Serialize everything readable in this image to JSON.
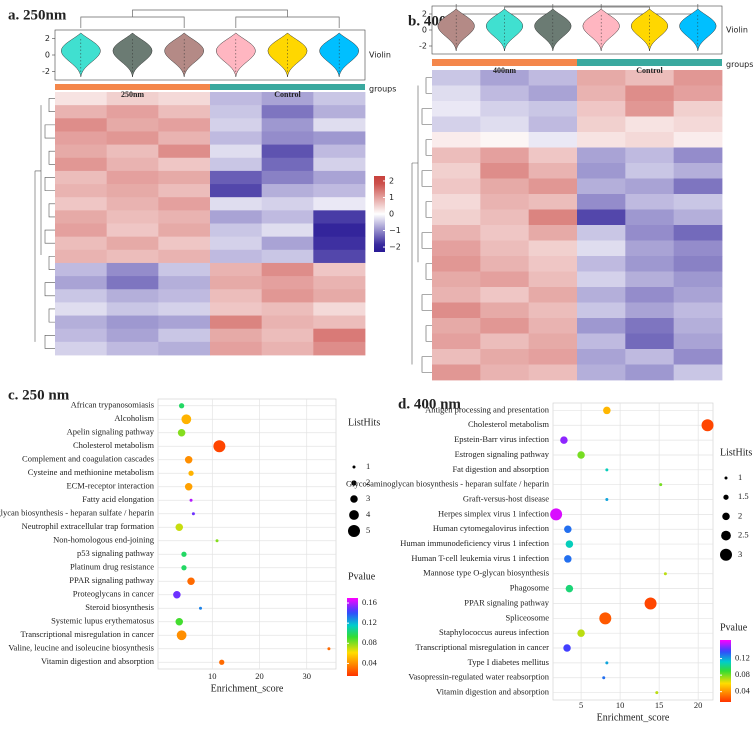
{
  "chart_data": [
    {
      "type": "heatmap",
      "title": "a. 250nm",
      "groups": [
        "250nm",
        "Control"
      ],
      "group_colors": [
        "#f4874b",
        "#3aa99f"
      ],
      "groups_label": "groups",
      "violin_label": "Violin",
      "violin_colors": [
        "#40e0d0",
        "#6b7b73",
        "#b48a86",
        "#ffb6c1",
        "#ffd700",
        "#00bfff"
      ],
      "violin_yticks": [
        -2,
        0,
        2
      ],
      "colorbar_ticks": [
        2,
        1,
        0,
        {
          "value": -1,
          "label": "−1"
        },
        {
          "value": -2,
          "label": "−2"
        }
      ],
      "zlim": [
        -2.3,
        2.3
      ],
      "values": [
        [
          0.3,
          0.5,
          0.4,
          -0.6,
          -0.8,
          -0.5
        ],
        [
          0.8,
          1.0,
          0.7,
          -0.5,
          -1.2,
          -0.7
        ],
        [
          1.2,
          0.9,
          1.0,
          -0.4,
          -0.9,
          -0.3
        ],
        [
          1.0,
          1.1,
          0.8,
          -0.6,
          -1.0,
          -0.9
        ],
        [
          0.9,
          0.7,
          1.2,
          -0.3,
          -1.5,
          -0.6
        ],
        [
          1.1,
          0.8,
          0.6,
          -0.5,
          -1.3,
          -0.4
        ],
        [
          0.7,
          1.0,
          0.9,
          -1.4,
          -1.1,
          -0.8
        ],
        [
          0.8,
          0.9,
          0.7,
          -1.6,
          -0.7,
          -0.6
        ],
        [
          0.6,
          0.8,
          1.0,
          -0.3,
          -0.4,
          -0.2
        ],
        [
          0.9,
          0.7,
          0.8,
          -0.8,
          -0.6,
          -1.7
        ],
        [
          1.0,
          0.6,
          0.9,
          -0.5,
          -0.3,
          -1.9
        ],
        [
          0.7,
          0.9,
          0.6,
          -0.4,
          -0.8,
          -1.8
        ],
        [
          0.8,
          0.7,
          0.8,
          -0.6,
          -0.5,
          -1.6
        ],
        [
          -0.6,
          -1.0,
          -0.5,
          0.8,
          1.2,
          0.6
        ],
        [
          -0.8,
          -1.2,
          -0.7,
          0.9,
          1.0,
          0.8
        ],
        [
          -0.5,
          -0.7,
          -0.6,
          0.7,
          1.1,
          0.9
        ],
        [
          -0.3,
          -0.5,
          -0.4,
          0.6,
          0.7,
          0.4
        ],
        [
          -0.7,
          -0.9,
          -0.8,
          1.3,
          0.8,
          0.7
        ],
        [
          -0.6,
          -0.8,
          -0.5,
          0.9,
          0.7,
          1.4
        ],
        [
          -0.4,
          -0.6,
          -0.7,
          1.0,
          0.8,
          1.2
        ]
      ]
    },
    {
      "type": "heatmap",
      "title": "b. 400nm",
      "groups": [
        "400nm",
        "Control"
      ],
      "group_colors": [
        "#f4874b",
        "#3aa99f"
      ],
      "groups_label": "groups",
      "violin_label": "Violin",
      "violin_colors": [
        "#b48a86",
        "#40e0d0",
        "#6b7b73",
        "#ffb6c1",
        "#ffd700",
        "#00bfff"
      ],
      "violin_yticks": [
        -2,
        0,
        2
      ],
      "values": [
        [
          -0.5,
          -0.8,
          -0.6,
          0.9,
          0.7,
          1.1
        ],
        [
          -0.3,
          -0.6,
          -0.8,
          0.8,
          1.2,
          1.0
        ],
        [
          -0.2,
          -0.4,
          -0.5,
          0.6,
          1.1,
          0.5
        ],
        [
          -0.4,
          -0.3,
          -0.6,
          0.5,
          0.3,
          0.4
        ],
        [
          0.2,
          0.1,
          -0.2,
          0.3,
          0.4,
          0.2
        ],
        [
          0.7,
          1.0,
          0.6,
          -0.8,
          -0.6,
          -1.0
        ],
        [
          0.5,
          1.2,
          0.8,
          -0.9,
          -0.5,
          -0.7
        ],
        [
          0.6,
          0.9,
          1.1,
          -0.7,
          -0.8,
          -1.2
        ],
        [
          0.4,
          0.8,
          0.7,
          -1.0,
          -0.6,
          -0.5
        ],
        [
          0.5,
          0.7,
          1.3,
          -1.6,
          -0.9,
          -0.7
        ],
        [
          0.8,
          0.6,
          0.9,
          -0.5,
          -1.0,
          -1.3
        ],
        [
          1.0,
          0.7,
          0.5,
          -0.3,
          -0.8,
          -1.0
        ],
        [
          1.1,
          0.8,
          0.6,
          -0.6,
          -0.9,
          -1.1
        ],
        [
          0.9,
          1.0,
          0.7,
          -0.4,
          -0.7,
          -0.9
        ],
        [
          0.8,
          0.6,
          0.9,
          -0.7,
          -1.0,
          -0.8
        ],
        [
          1.2,
          0.9,
          0.7,
          -0.5,
          -0.8,
          -0.6
        ],
        [
          0.9,
          1.1,
          0.8,
          -0.9,
          -1.2,
          -0.7
        ],
        [
          1.0,
          0.7,
          0.9,
          -0.6,
          -1.3,
          -0.8
        ],
        [
          0.7,
          0.9,
          1.0,
          -0.8,
          -0.6,
          -1.0
        ],
        [
          1.1,
          0.8,
          0.7,
          -0.7,
          -0.9,
          -0.5
        ]
      ]
    },
    {
      "type": "bubble",
      "title": "c. 250 nm",
      "xlabel": "Enrichment_score",
      "categories": [
        "African trypanosomiasis",
        "Alcoholism",
        "Apelin signaling pathway",
        "Cholesterol metabolism",
        "Complement and coagulation cascades",
        "Cysteine and methionine metabolism",
        "ECM-receptor interaction",
        "Fatty acid elongation",
        "Glycosaminoglycan biosynthesis - heparan sulfate / heparin",
        "Neutrophil extracellular trap formation",
        "Non-homologous end-joining",
        "p53 signaling pathway",
        "Platinum drug resistance",
        "PPAR signaling pathway",
        "Proteoglycans in cancer",
        "Steroid biosynthesis",
        "Systemic lupus erythematosus",
        "Transcriptional misregulation in cancer",
        "Valine, leucine and isoleucine biosynthesis",
        "Vitamin digestion and absorption"
      ],
      "values": [
        3.5,
        4.5,
        3.5,
        11.5,
        5,
        5.5,
        5,
        5.5,
        6,
        3,
        11,
        4,
        4,
        5.5,
        2.5,
        7.5,
        3,
        3.5,
        34.7,
        12
      ],
      "sizes": [
        2,
        4,
        3,
        5,
        3,
        2,
        3,
        1,
        1,
        3,
        1,
        2,
        2,
        3,
        3,
        1,
        3,
        4,
        1,
        2
      ],
      "pvalues": [
        0.1,
        0.05,
        0.08,
        0.02,
        0.04,
        0.05,
        0.045,
        0.16,
        0.15,
        0.07,
        0.08,
        0.1,
        0.1,
        0.03,
        0.15,
        0.13,
        0.09,
        0.04,
        0.03,
        0.03
      ],
      "xlim": [
        -1.5,
        36.2
      ],
      "xticks": [
        10,
        20,
        30
      ],
      "size_title": "ListHits",
      "size_ticks": [
        1,
        2,
        3,
        4,
        5
      ],
      "size_range": [
        1,
        5
      ],
      "color_title": "Pvalue",
      "color_ticks": [
        0.04,
        0.08,
        0.12,
        0.16
      ],
      "color_lim": [
        0.015,
        0.17
      ]
    },
    {
      "type": "bubble",
      "title": "d. 400 nm",
      "xlabel": "Enrichment_score",
      "categories": [
        "Antigen processing and presentation",
        "Cholesterol metabolism",
        "Epstein-Barr virus infection",
        "Estrogen signaling pathway",
        "Fat digestion and absorption",
        "Glycosaminoglycan biosynthesis - heparan sulfate / heparin",
        "Graft-versus-host disease",
        "Herpes simplex virus 1 infection",
        "Human cytomegalovirus infection",
        "Human immunodeficiency virus 1 infection",
        "Human T-cell leukemia virus 1 infection",
        "Mannose type O-glycan biosynthesis",
        "Phagosome",
        "PPAR signaling pathway",
        "Spliceosome",
        "Staphylococcus aureus infection",
        "Transcriptional misregulation in cancer",
        "Type I diabetes mellitus",
        "Vasopressin-regulated water reabsorption",
        "Vitamin digestion and absorption"
      ],
      "values": [
        8.3,
        21.2,
        2.8,
        5,
        8.3,
        15.2,
        8.3,
        1.8,
        3.3,
        3.5,
        3.3,
        15.8,
        3.5,
        13.9,
        8.1,
        5,
        3.2,
        8.3,
        7.9,
        14.7
      ],
      "sizes": [
        2,
        3,
        2,
        2,
        1,
        1,
        1,
        3,
        2,
        2,
        2,
        1,
        2,
        3,
        3,
        2,
        2,
        1,
        1,
        1
      ],
      "pvalues": [
        0.05,
        0.02,
        0.15,
        0.08,
        0.11,
        0.08,
        0.12,
        0.16,
        0.13,
        0.11,
        0.13,
        0.07,
        0.1,
        0.02,
        0.025,
        0.07,
        0.14,
        0.12,
        0.13,
        0.07
      ],
      "xlim": [
        1.4,
        21.9
      ],
      "xticks": [
        5,
        10,
        15,
        20
      ],
      "size_title": "ListHits",
      "size_ticks": [
        1.0,
        1.5,
        2.0,
        2.5,
        3.0
      ],
      "size_range": [
        1,
        3
      ],
      "color_title": "Pvalue",
      "color_ticks": [
        0.04,
        0.08,
        0.12
      ],
      "color_lim": [
        0.015,
        0.165
      ]
    }
  ]
}
